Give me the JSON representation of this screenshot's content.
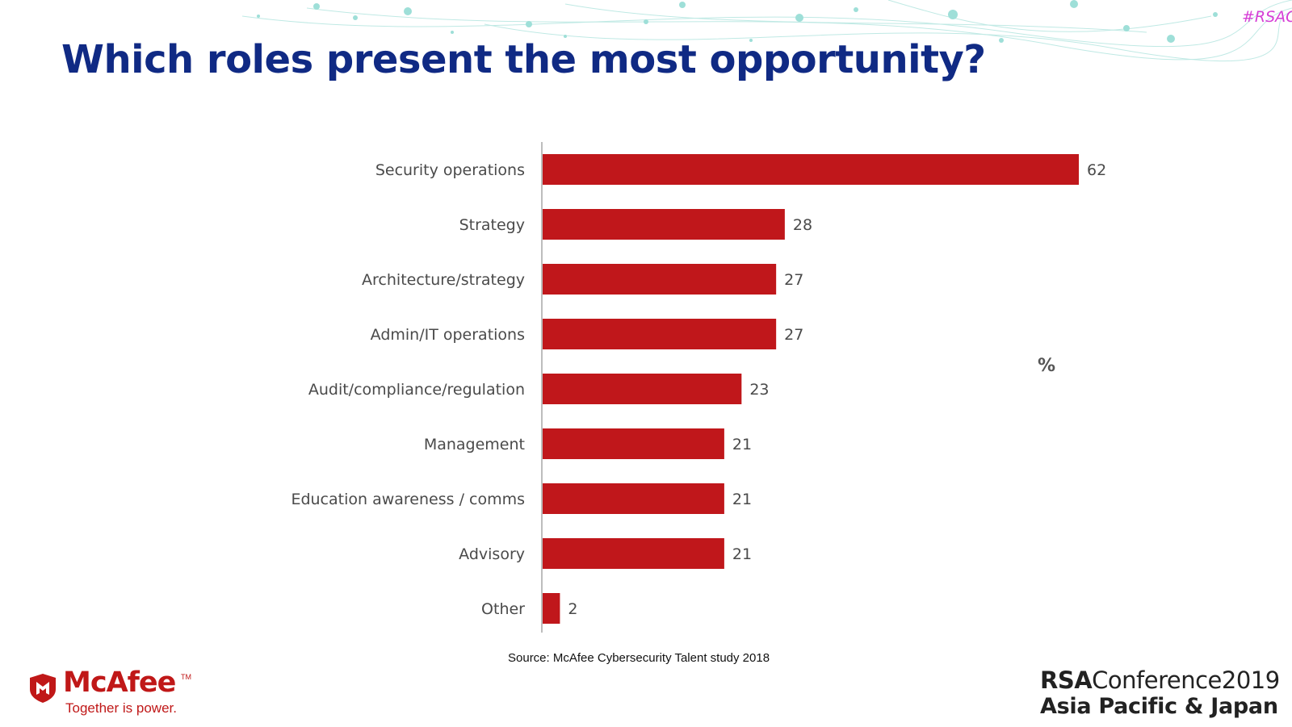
{
  "slide": {
    "title": "Which roles present the most opportunity?",
    "hashtag": "#RSAC",
    "source": "Source: McAfee Cybersecurity Talent study 2018"
  },
  "branding": {
    "mcafee_name": "McAfee",
    "mcafee_tagline": "Together is power.",
    "conference_line1_bold": "RSA",
    "conference_line1": "Conference2019",
    "conference_line2": "Asia Pacific & Japan"
  },
  "colors": {
    "bar": "#c0171b",
    "title": "#102a84",
    "brand_red": "#c01818",
    "hashtag": "#d63fd6"
  },
  "chart_data": {
    "type": "bar",
    "orientation": "horizontal",
    "title": "Which roles present the most opportunity?",
    "unit_label": "%",
    "categories": [
      "Security operations",
      "Strategy",
      "Architecture/strategy",
      "Admin/IT operations",
      "Audit/compliance/regulation",
      "Management",
      "Education awareness / comms",
      "Advisory",
      "Other"
    ],
    "values": [
      62,
      28,
      27,
      27,
      23,
      21,
      21,
      21,
      2
    ],
    "xlim": [
      0,
      62
    ],
    "grid": false,
    "data_labels": true
  }
}
